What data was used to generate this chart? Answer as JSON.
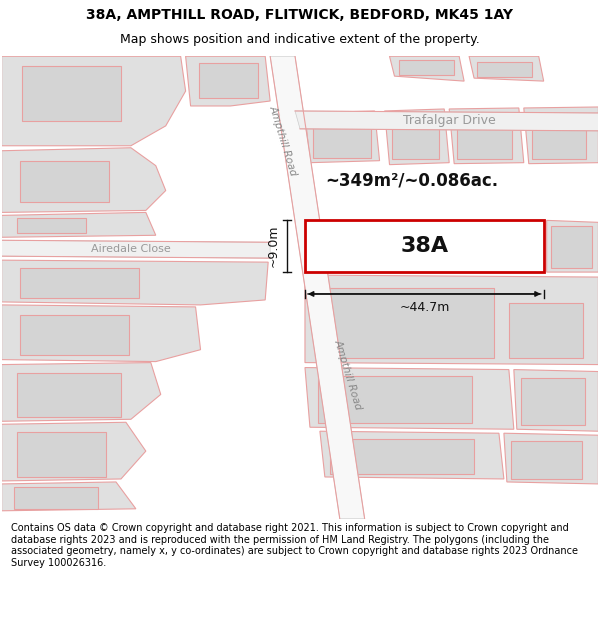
{
  "title_line1": "38A, AMPTHILL ROAD, FLITWICK, BEDFORD, MK45 1AY",
  "title_line2": "Map shows position and indicative extent of the property.",
  "footer_text": "Contains OS data © Crown copyright and database right 2021. This information is subject to Crown copyright and database rights 2023 and is reproduced with the permission of HM Land Registry. The polygons (including the associated geometry, namely x, y co-ordinates) are subject to Crown copyright and database rights 2023 Ordnance Survey 100026316.",
  "map_bg": "#f5f5f5",
  "road_color": "#e8e8e8",
  "road_center_color": "#ffffff",
  "highlight_plot_fill": "#ffffff",
  "highlight_plot_edge": "#cc0000",
  "other_plot_fill": "#e0e0e0",
  "other_plot_edge": "#e8a0a0",
  "plot_line_color": "#e8a0a0",
  "label_38A": "38A",
  "area_label": "~349m²/~0.086ac.",
  "dim_width": "~44.7m",
  "dim_height": "~9.0m",
  "road_label1": "Ampthill Road",
  "road_label2": "Trafalgar Drive",
  "road_label3": "Airedale Close",
  "title_fontsize": 10,
  "subtitle_fontsize": 9,
  "footer_fontsize": 7
}
